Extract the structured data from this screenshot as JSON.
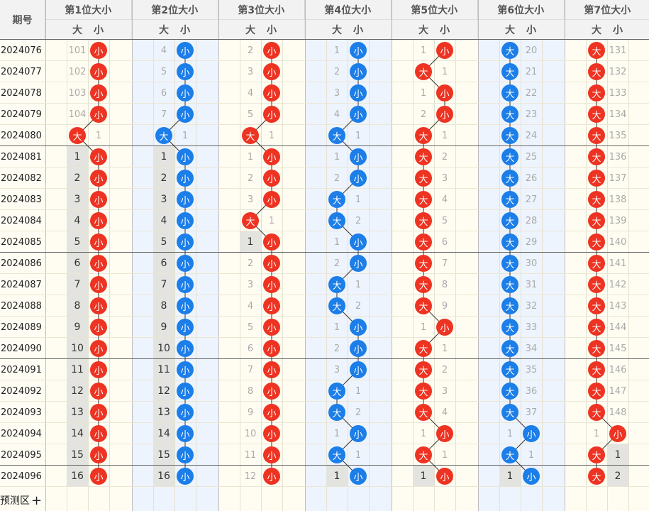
{
  "header": {
    "issue_label": "期号",
    "columns": [
      "第1位大小",
      "第2位大小",
      "第3位大小",
      "第4位大小",
      "第5位大小",
      "第6位大小",
      "第7位大小"
    ],
    "sub_big": "大",
    "sub_small": "小"
  },
  "issues": [
    "2024076",
    "2024077",
    "2024078",
    "2024079",
    "2024080",
    "2024081",
    "2024082",
    "2024083",
    "2024084",
    "2024085",
    "2024086",
    "2024087",
    "2024088",
    "2024089",
    "2024090",
    "2024091",
    "2024092",
    "2024093",
    "2024094",
    "2024095",
    "2024096"
  ],
  "positions": [
    {
      "color": "#ee3322",
      "result": [
        "小",
        "小",
        "小",
        "小",
        "大",
        "小",
        "小",
        "小",
        "小",
        "小",
        "小",
        "小",
        "小",
        "小",
        "小",
        "小",
        "小",
        "小",
        "小",
        "小",
        "小"
      ],
      "big_miss": [
        101,
        102,
        103,
        104,
        null,
        1,
        2,
        3,
        4,
        5,
        6,
        7,
        8,
        9,
        10,
        11,
        12,
        13,
        14,
        15,
        16
      ],
      "small_miss": [
        null,
        null,
        null,
        null,
        1,
        null,
        null,
        null,
        null,
        null,
        null,
        null,
        null,
        null,
        null,
        null,
        null,
        null,
        null,
        null,
        null
      ]
    },
    {
      "color": "#1c7ee8",
      "result": [
        "小",
        "小",
        "小",
        "小",
        "大",
        "小",
        "小",
        "小",
        "小",
        "小",
        "小",
        "小",
        "小",
        "小",
        "小",
        "小",
        "小",
        "小",
        "小",
        "小",
        "小"
      ],
      "big_miss": [
        4,
        5,
        6,
        7,
        null,
        1,
        2,
        3,
        4,
        5,
        6,
        7,
        8,
        9,
        10,
        11,
        12,
        13,
        14,
        15,
        16
      ],
      "small_miss": [
        null,
        null,
        null,
        null,
        1,
        null,
        null,
        null,
        null,
        null,
        null,
        null,
        null,
        null,
        null,
        null,
        null,
        null,
        null,
        null,
        null
      ]
    },
    {
      "color": "#ee3322",
      "result": [
        "小",
        "小",
        "小",
        "小",
        "大",
        "小",
        "小",
        "小",
        "大",
        "小",
        "小",
        "小",
        "小",
        "小",
        "小",
        "小",
        "小",
        "小",
        "小",
        "小",
        "小"
      ],
      "big_miss": [
        2,
        3,
        4,
        5,
        null,
        1,
        2,
        3,
        null,
        1,
        2,
        3,
        4,
        5,
        6,
        7,
        8,
        9,
        10,
        11,
        12
      ],
      "small_miss": [
        null,
        null,
        null,
        null,
        1,
        null,
        null,
        null,
        1,
        null,
        null,
        null,
        null,
        null,
        null,
        null,
        null,
        null,
        null,
        null,
        null
      ]
    },
    {
      "color": "#1c7ee8",
      "result": [
        "小",
        "小",
        "小",
        "小",
        "大",
        "小",
        "小",
        "大",
        "大",
        "小",
        "小",
        "大",
        "大",
        "小",
        "小",
        "小",
        "大",
        "大",
        "小",
        "大",
        "小"
      ],
      "big_miss": [
        1,
        2,
        3,
        4,
        null,
        1,
        2,
        null,
        null,
        1,
        2,
        null,
        null,
        1,
        2,
        3,
        null,
        null,
        1,
        null,
        1
      ],
      "small_miss": [
        null,
        null,
        null,
        null,
        1,
        null,
        null,
        1,
        2,
        null,
        null,
        1,
        2,
        null,
        null,
        null,
        1,
        2,
        null,
        1,
        null
      ]
    },
    {
      "color": "#ee3322",
      "result": [
        "小",
        "大",
        "小",
        "小",
        "大",
        "大",
        "大",
        "大",
        "大",
        "大",
        "大",
        "大",
        "大",
        "小",
        "大",
        "大",
        "大",
        "大",
        "小",
        "大",
        "小"
      ],
      "big_miss": [
        1,
        null,
        1,
        2,
        null,
        null,
        null,
        null,
        null,
        null,
        null,
        null,
        null,
        1,
        null,
        null,
        null,
        null,
        1,
        null,
        1
      ],
      "small_miss": [
        null,
        1,
        null,
        null,
        1,
        2,
        3,
        4,
        5,
        6,
        7,
        8,
        9,
        null,
        1,
        2,
        3,
        4,
        null,
        1,
        null
      ]
    },
    {
      "color": "#1c7ee8",
      "result": [
        "大",
        "大",
        "大",
        "大",
        "大",
        "大",
        "大",
        "大",
        "大",
        "大",
        "大",
        "大",
        "大",
        "大",
        "大",
        "大",
        "大",
        "大",
        "小",
        "大",
        "小"
      ],
      "big_miss": [
        null,
        null,
        null,
        null,
        null,
        null,
        null,
        null,
        null,
        null,
        null,
        null,
        null,
        null,
        null,
        null,
        null,
        null,
        1,
        null,
        1
      ],
      "small_miss": [
        20,
        21,
        22,
        23,
        24,
        25,
        26,
        27,
        28,
        29,
        30,
        31,
        32,
        33,
        34,
        35,
        36,
        37,
        null,
        1,
        null
      ]
    },
    {
      "color": "#ee3322",
      "result": [
        "大",
        "大",
        "大",
        "大",
        "大",
        "大",
        "大",
        "大",
        "大",
        "大",
        "大",
        "大",
        "大",
        "大",
        "大",
        "大",
        "大",
        "大",
        "小",
        "大",
        "大"
      ],
      "big_miss": [
        null,
        null,
        null,
        null,
        null,
        null,
        null,
        null,
        null,
        null,
        null,
        null,
        null,
        null,
        null,
        null,
        null,
        null,
        1,
        null,
        null
      ],
      "small_miss": [
        131,
        132,
        133,
        134,
        135,
        136,
        137,
        138,
        139,
        140,
        141,
        142,
        143,
        144,
        145,
        146,
        147,
        148,
        null,
        1,
        2
      ]
    }
  ],
  "footer": {
    "predict_label": "预测区",
    "predict_icon": "plus-icon"
  }
}
